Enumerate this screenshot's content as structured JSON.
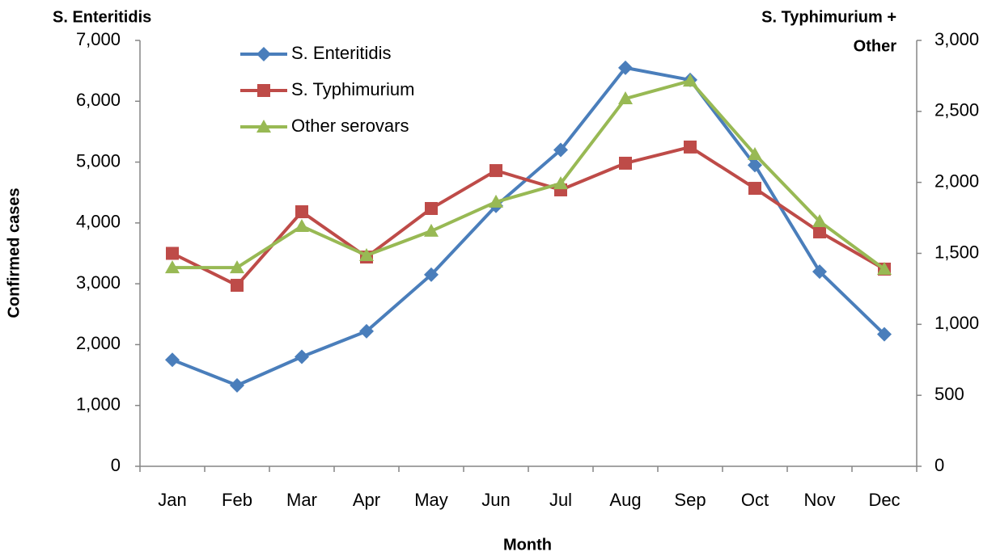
{
  "chart_data": {
    "type": "line",
    "x_label": "Month",
    "y_label": "Confirmed cases",
    "y_title": "S. Enteritidis",
    "y2_title": [
      "S. Typhimurium +",
      "Other"
    ],
    "categories": [
      "Jan",
      "Feb",
      "Mar",
      "Apr",
      "May",
      "Jun",
      "Jul",
      "Aug",
      "Sep",
      "Oct",
      "Nov",
      "Dec"
    ],
    "series": [
      {
        "name": "S. Enteritidis",
        "color": "#4a7ebb",
        "marker": "diamond",
        "axis": "y",
        "values": [
          1750,
          1330,
          1800,
          2220,
          3150,
          4280,
          5200,
          6550,
          6350,
          4950,
          3200,
          2170
        ]
      },
      {
        "name": "S. Typhimurium",
        "color": "#be4b48",
        "marker": "square",
        "axis": "y2",
        "values": [
          1500,
          1275,
          1793,
          1474,
          1816,
          2083,
          1947,
          2135,
          2249,
          1958,
          1651,
          1389
        ]
      },
      {
        "name": "Other serovars",
        "color": "#98b954",
        "marker": "triangle",
        "axis": "y2",
        "values": [
          1400,
          1400,
          1691,
          1486,
          1657,
          1862,
          1992,
          2590,
          2715,
          2197,
          1725,
          1389
        ]
      }
    ],
    "ylim": [
      0,
      7000
    ],
    "yticks": [
      0,
      {
        "value": 1000,
        "label": "1,000"
      },
      {
        "value": 2000,
        "label": "2,000"
      },
      {
        "value": 3000,
        "label": "3,000"
      },
      {
        "value": 4000,
        "label": "4,000"
      },
      {
        "value": 5000,
        "label": "5,000"
      },
      {
        "value": 6000,
        "label": "6,000"
      },
      {
        "value": 7000,
        "label": "7,000"
      }
    ],
    "y2lim": [
      0,
      3000
    ],
    "y2ticks": [
      0,
      500,
      {
        "value": 1000,
        "label": "1,000"
      },
      {
        "value": 1500,
        "label": "1,500"
      },
      {
        "value": 2000,
        "label": "2,000"
      },
      {
        "value": 2500,
        "label": "2,500"
      },
      {
        "value": 3000,
        "label": "3,000"
      }
    ],
    "grid": false,
    "legend": "upper left"
  }
}
